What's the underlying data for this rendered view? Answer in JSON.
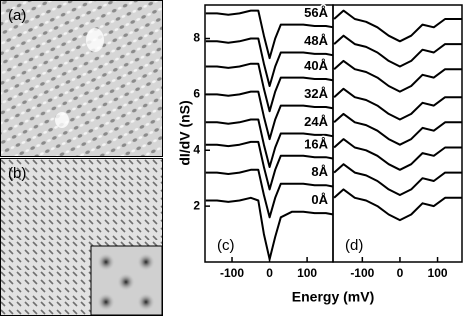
{
  "images": [
    {
      "label": "(a)"
    },
    {
      "label": "(b)"
    }
  ],
  "chart_data": [
    {
      "type": "line",
      "panel_label": "(c)",
      "ylabel": "dI/dV (nS)",
      "xlabel": "Energy (mV)",
      "x": [
        -170,
        -140,
        -110,
        -80,
        -50,
        -30,
        -15,
        0,
        15,
        30,
        60,
        90,
        120,
        150,
        170
      ],
      "xlim": [
        -172,
        169
      ],
      "ylim": [
        0,
        9.2
      ],
      "xticks": [
        -100,
        0,
        100
      ],
      "yticks": [
        2,
        4,
        6,
        8
      ],
      "series": [
        {
          "name": "56Å",
          "color": "#000000",
          "values": [
            8.9,
            8.9,
            8.85,
            8.9,
            9.0,
            9.0,
            8.1,
            7.3,
            8.0,
            8.5,
            8.5,
            8.5,
            8.45,
            8.45,
            8.4
          ]
        },
        {
          "name": "48Å",
          "color": "#000000",
          "values": [
            7.9,
            7.9,
            7.85,
            7.9,
            8.0,
            8.0,
            7.1,
            6.3,
            7.0,
            7.5,
            7.5,
            7.5,
            7.45,
            7.45,
            7.4
          ]
        },
        {
          "name": "40Å",
          "color": "#000000",
          "values": [
            7.0,
            7.0,
            6.95,
            7.0,
            7.1,
            7.1,
            6.2,
            5.4,
            6.1,
            6.6,
            6.6,
            6.6,
            6.55,
            6.55,
            6.5
          ]
        },
        {
          "name": "32Å",
          "color": "#000000",
          "values": [
            6.0,
            6.0,
            5.95,
            6.0,
            6.1,
            6.1,
            5.2,
            4.4,
            5.1,
            5.6,
            5.6,
            5.6,
            5.55,
            5.55,
            5.5
          ]
        },
        {
          "name": "24Å",
          "color": "#000000",
          "values": [
            5.0,
            5.0,
            4.95,
            5.0,
            5.1,
            5.1,
            4.2,
            3.4,
            4.1,
            4.6,
            4.6,
            4.6,
            4.55,
            4.55,
            4.5
          ]
        },
        {
          "name": "16Å",
          "color": "#000000",
          "values": [
            4.2,
            4.2,
            4.15,
            4.2,
            4.3,
            4.3,
            3.4,
            2.6,
            3.3,
            3.8,
            3.8,
            3.8,
            3.75,
            3.75,
            3.7
          ]
        },
        {
          "name": "8Å",
          "color": "#000000",
          "values": [
            3.2,
            3.2,
            3.15,
            3.2,
            3.3,
            3.3,
            2.4,
            1.6,
            2.3,
            2.8,
            2.8,
            2.8,
            2.75,
            2.75,
            2.7
          ]
        },
        {
          "name": "0Å",
          "color": "#000000",
          "values": [
            2.2,
            2.2,
            2.15,
            2.2,
            2.3,
            2.2,
            1.0,
            0.1,
            0.9,
            1.6,
            1.8,
            1.8,
            1.75,
            1.75,
            1.7
          ]
        }
      ]
    },
    {
      "type": "line",
      "panel_label": "(d)",
      "x": [
        -175,
        -150,
        -120,
        -90,
        -60,
        -30,
        0,
        30,
        60,
        90,
        120,
        150,
        165
      ],
      "xlim": [
        -178,
        165
      ],
      "ylim": [
        0,
        9.2
      ],
      "xticks": [
        -100,
        0,
        100
      ],
      "series": [
        {
          "color": "#000000",
          "values": [
            8.7,
            9.0,
            8.7,
            8.6,
            8.4,
            8.1,
            7.9,
            8.1,
            8.5,
            8.4,
            8.7,
            8.7,
            8.7
          ]
        },
        {
          "color": "#000000",
          "values": [
            7.8,
            8.1,
            7.8,
            7.7,
            7.5,
            7.2,
            7.0,
            7.2,
            7.6,
            7.5,
            7.8,
            7.8,
            7.8
          ]
        },
        {
          "color": "#000000",
          "values": [
            6.9,
            7.2,
            6.9,
            6.8,
            6.6,
            6.3,
            6.1,
            6.3,
            6.7,
            6.6,
            6.9,
            6.9,
            6.9
          ]
        },
        {
          "color": "#000000",
          "values": [
            5.9,
            6.2,
            5.9,
            5.8,
            5.6,
            5.3,
            5.1,
            5.3,
            5.7,
            5.6,
            5.9,
            5.9,
            5.9
          ]
        },
        {
          "color": "#000000",
          "values": [
            5.0,
            5.3,
            5.0,
            4.9,
            4.7,
            4.4,
            4.2,
            4.4,
            4.8,
            4.7,
            5.0,
            5.0,
            5.0
          ]
        },
        {
          "color": "#000000",
          "values": [
            4.1,
            4.4,
            4.1,
            4.0,
            3.8,
            3.5,
            3.3,
            3.5,
            3.9,
            3.8,
            4.1,
            4.1,
            4.1
          ]
        },
        {
          "color": "#000000",
          "values": [
            3.2,
            3.5,
            3.2,
            3.1,
            2.9,
            2.6,
            2.4,
            2.6,
            3.0,
            2.9,
            3.2,
            3.2,
            3.2
          ]
        },
        {
          "color": "#000000",
          "values": [
            2.3,
            2.6,
            2.3,
            2.2,
            2.0,
            1.7,
            1.5,
            1.7,
            2.1,
            2.0,
            2.3,
            2.3,
            2.3
          ]
        }
      ]
    }
  ]
}
